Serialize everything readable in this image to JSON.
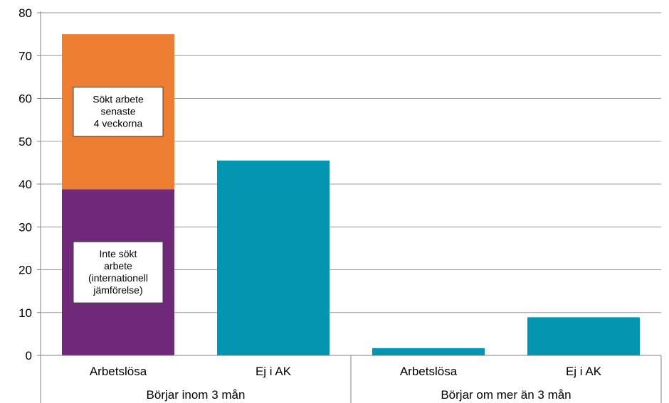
{
  "chart_data": {
    "type": "bar",
    "stacked": true,
    "ylim": [
      0,
      80
    ],
    "yticks": [
      0,
      10,
      20,
      30,
      40,
      50,
      60,
      70,
      80
    ],
    "grid": true,
    "groups": [
      {
        "label": "Börjar inom 3 mån",
        "categories": [
          "Arbetslösa",
          "Ej i AK"
        ]
      },
      {
        "label": "Börjar om mer än 3 mån",
        "categories": [
          "Arbetslösa",
          "Ej i AK"
        ]
      }
    ],
    "categories": [
      "Arbetslösa",
      "Ej i AK",
      "Arbetslösa",
      "Ej i AK"
    ],
    "series": [
      {
        "values": [
          38.8,
          0,
          0,
          0
        ],
        "color": "#702878"
      },
      {
        "values": [
          36.2,
          0,
          0,
          0
        ],
        "color": "#ED7D31"
      },
      {
        "values": [
          0,
          45.5,
          1.7,
          8.9
        ],
        "color": "#0495B0"
      }
    ],
    "annotations": [
      {
        "lines": [
          "Sökt arbete",
          "senaste",
          "4 veckorna"
        ],
        "series_index": 1,
        "category_index": 0
      },
      {
        "lines": [
          "Inte sökt",
          "arbete",
          "(internationell",
          "jämförelse)"
        ],
        "series_index": 0,
        "category_index": 0
      }
    ]
  }
}
